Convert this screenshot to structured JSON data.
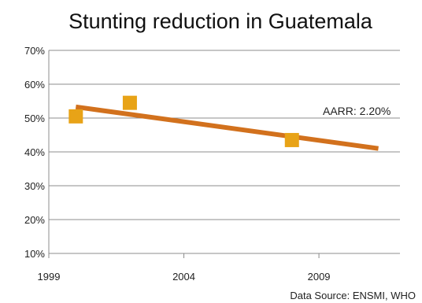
{
  "chart_data": {
    "type": "scatter",
    "title": "Stunting reduction in Guatemala",
    "xlabel": "",
    "ylabel": "",
    "xlim": [
      1999,
      2012
    ],
    "ylim": [
      10,
      70
    ],
    "x_ticks": [
      "1999",
      "2004",
      "2009"
    ],
    "x_tick_values": [
      1999,
      2004,
      2009
    ],
    "y_ticks": [
      "10%",
      "20%",
      "30%",
      "40%",
      "50%",
      "60%",
      "70%"
    ],
    "y_tick_values": [
      10,
      20,
      30,
      40,
      50,
      60,
      70
    ],
    "grid": true,
    "points": [
      {
        "x": 2000,
        "y": 50.5
      },
      {
        "x": 2002,
        "y": 54.5
      },
      {
        "x": 2008,
        "y": 43.5
      }
    ],
    "trendline": {
      "x": [
        2000,
        2011.2
      ],
      "y": [
        53.3,
        41.0
      ]
    },
    "annotation": "AARR: 2.20%",
    "source": "Data Source: ENSMI,  WHO",
    "colors": {
      "points": "#E8A317",
      "trendline": "#D2711D",
      "grid": "#8c8c8c"
    }
  }
}
